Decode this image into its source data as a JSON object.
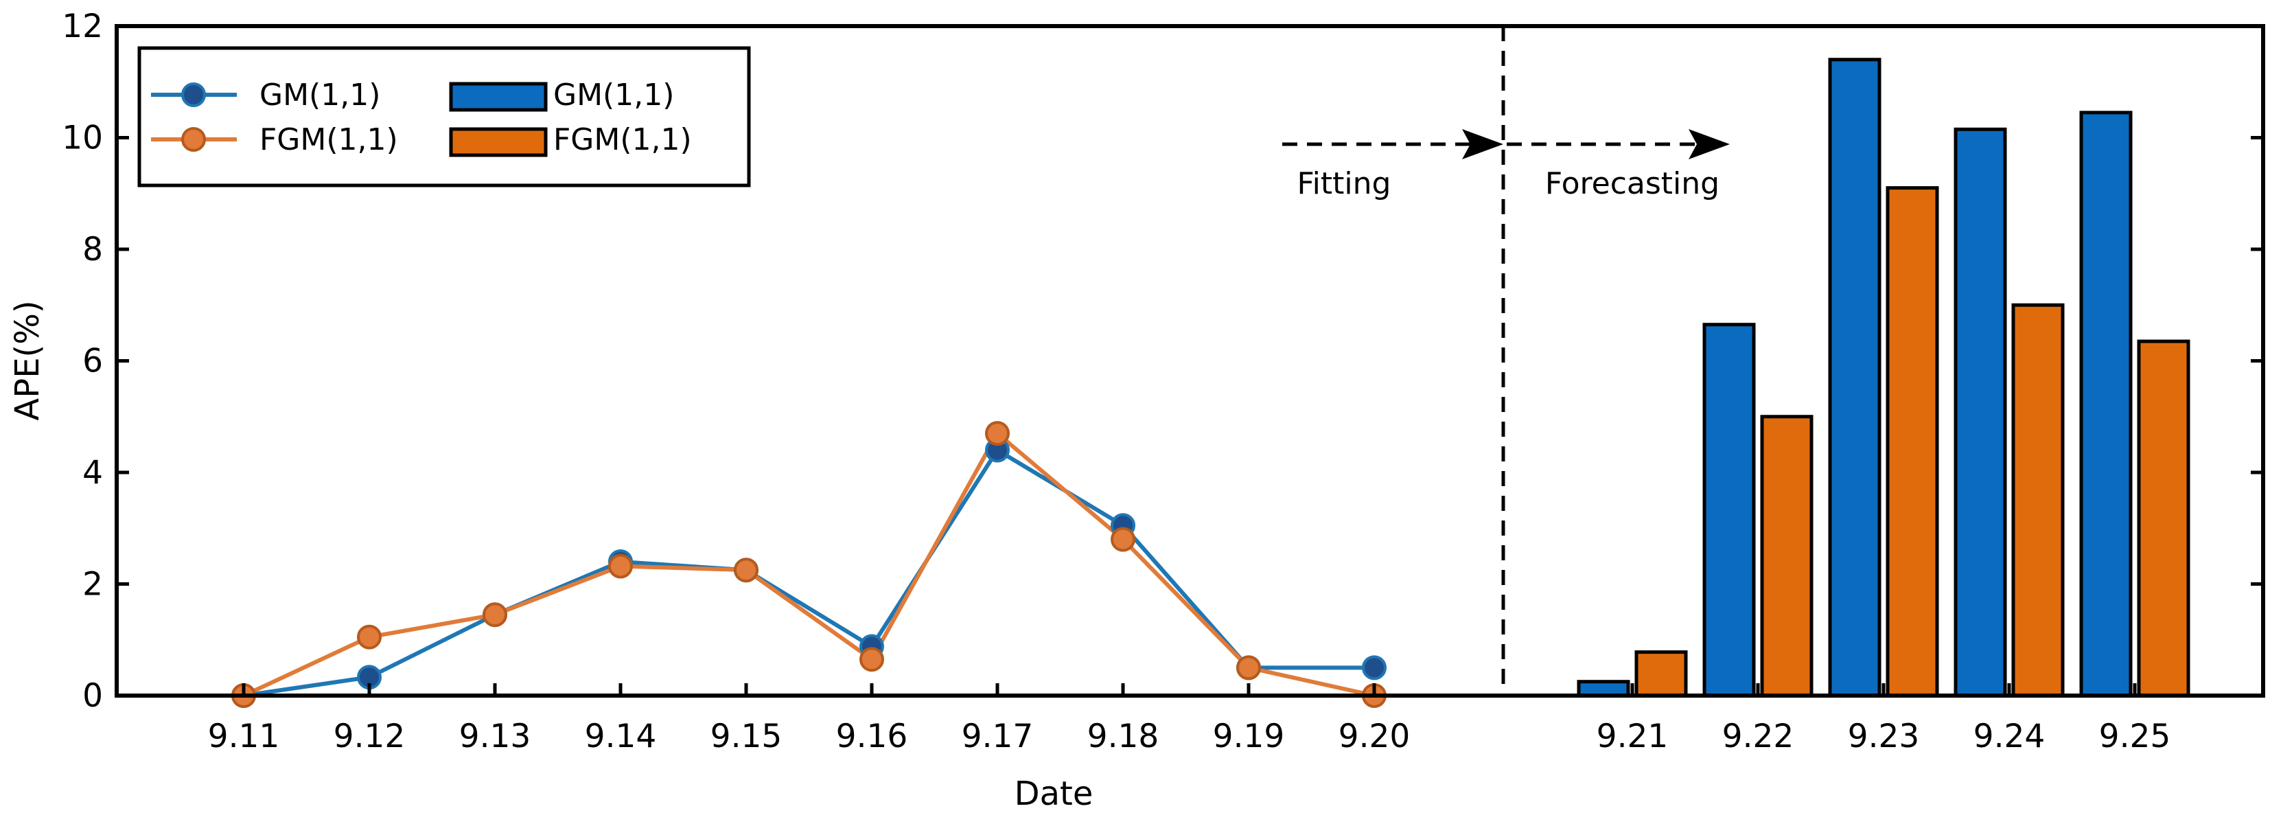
{
  "chart_data": {
    "type": "line+bar",
    "xlabel": "Date",
    "ylabel": "APE(%)",
    "ylim": [
      0,
      12
    ],
    "yticks": [
      0,
      2,
      4,
      6,
      8,
      10,
      12
    ],
    "grid": false,
    "legend_placement": "top-left",
    "fitting": {
      "type": "line",
      "categories": [
        "9.11",
        "9.12",
        "9.13",
        "9.14",
        "9.15",
        "9.16",
        "9.17",
        "9.18",
        "9.19",
        "9.20"
      ],
      "series": [
        {
          "name": "GM(1,1)",
          "values": [
            0.0,
            0.33,
            1.45,
            2.4,
            2.25,
            0.88,
            4.4,
            3.05,
            0.5,
            0.5
          ]
        },
        {
          "name": "FGM(1,1)",
          "values": [
            0.0,
            1.05,
            1.45,
            2.32,
            2.25,
            0.65,
            4.7,
            2.8,
            0.5,
            0.0
          ]
        }
      ]
    },
    "forecasting": {
      "type": "bar",
      "categories": [
        "9.21",
        "9.22",
        "9.23",
        "9.24",
        "9.25"
      ],
      "series": [
        {
          "name": "GM(1,1)",
          "values": [
            0.25,
            6.65,
            11.4,
            10.15,
            10.45
          ]
        },
        {
          "name": "FGM(1,1)",
          "values": [
            0.78,
            5.0,
            9.1,
            7.0,
            6.35
          ]
        }
      ]
    },
    "annotations": {
      "fitting": "Fitting",
      "forecasting": "Forecasting"
    },
    "colors": {
      "gm_line": "#1f77b4",
      "gm_marker": "#1f4e8c",
      "fgm": "#e07b39",
      "gm_bar": "#0b6bbf",
      "fgm_bar": "#e06b0c"
    }
  }
}
